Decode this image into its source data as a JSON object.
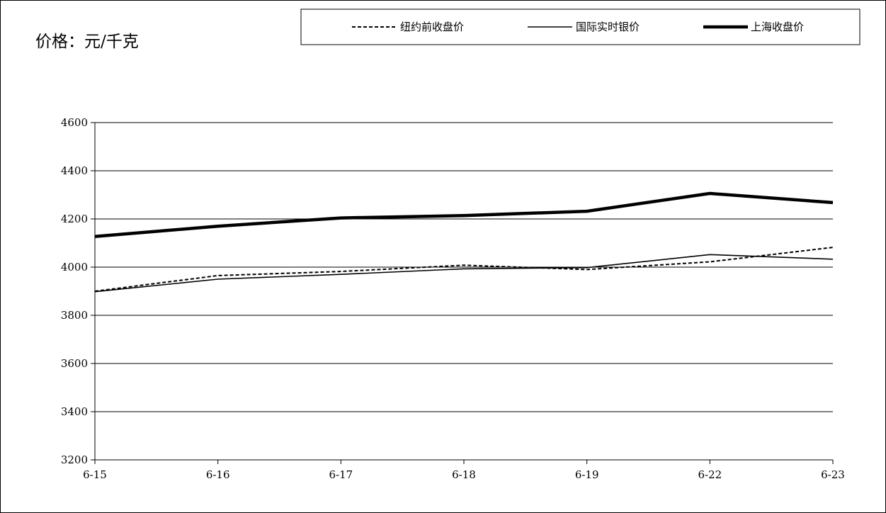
{
  "chart_data": {
    "type": "line",
    "unit_label": "价格：元/千克",
    "categories": [
      "6-15",
      "6-16",
      "6-17",
      "6-18",
      "6-19",
      "6-22",
      "6-23"
    ],
    "ylim": [
      3200,
      4600
    ],
    "yticks": [
      3200,
      3400,
      3600,
      3800,
      4000,
      4200,
      4400,
      4600
    ],
    "grid": true,
    "legend_position": "top",
    "series": [
      {
        "name": "纽约前收盘价",
        "style": "dashed",
        "color": "#000000",
        "values": [
          3900,
          3965,
          3982,
          4008,
          3990,
          4022,
          4082
        ]
      },
      {
        "name": "国际实时银价",
        "style": "thin",
        "color": "#000000",
        "values": [
          3898,
          3950,
          3970,
          3993,
          3998,
          4052,
          4033
        ]
      },
      {
        "name": "上海收盘价",
        "style": "thick",
        "color": "#000000",
        "values": [
          4127,
          4170,
          4204,
          4214,
          4232,
          4306,
          4268
        ]
      }
    ]
  }
}
